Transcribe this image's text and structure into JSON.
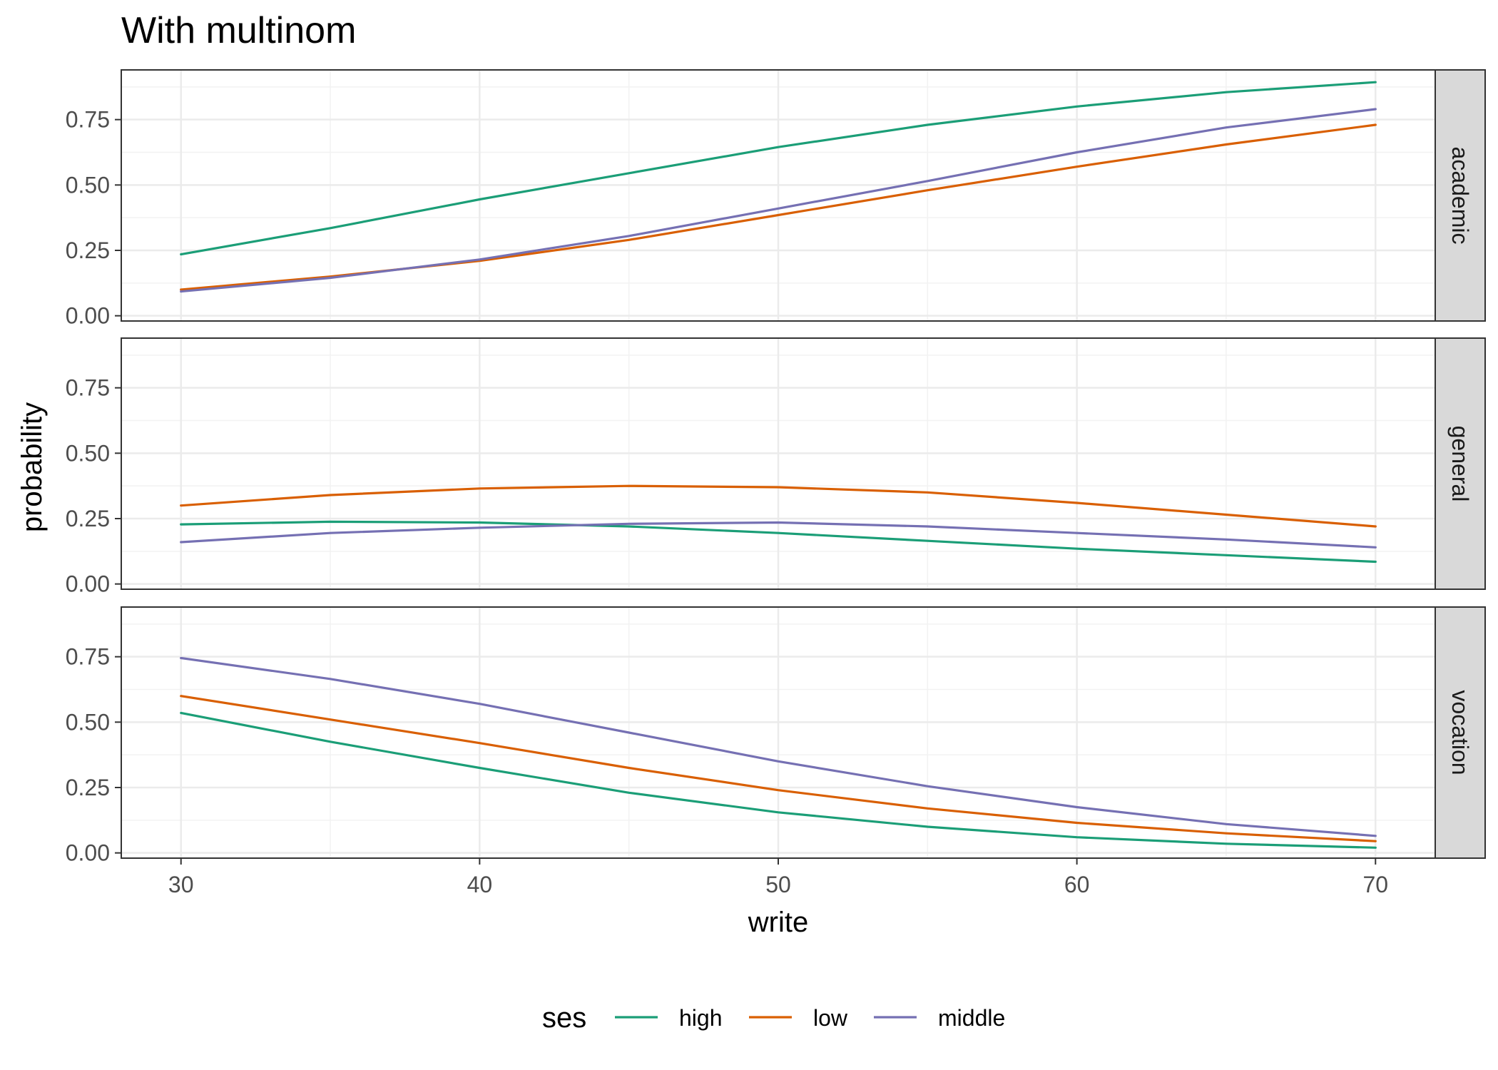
{
  "chart_data": {
    "type": "line",
    "title": "With multinom",
    "xlabel": "write",
    "ylabel": "probability",
    "xlim": [
      28,
      72
    ],
    "ylim": [
      -0.02,
      0.94
    ],
    "x_ticks": [
      30,
      40,
      50,
      60,
      70
    ],
    "x_tick_labels": [
      "30",
      "40",
      "50",
      "60",
      "70"
    ],
    "y_ticks": [
      0,
      0.25,
      0.5,
      0.75
    ],
    "y_tick_labels": [
      "0.00",
      "0.25",
      "0.50",
      "0.75"
    ],
    "legend": {
      "title": "ses",
      "position": "bottom",
      "entries": [
        {
          "name": "high",
          "color": "#1b9e77"
        },
        {
          "name": "low",
          "color": "#d95f02"
        },
        {
          "name": "middle",
          "color": "#7570b3"
        }
      ]
    },
    "x": [
      30,
      35,
      40,
      45,
      50,
      55,
      60,
      65,
      70
    ],
    "panels": [
      {
        "label": "academic",
        "series": [
          {
            "name": "high",
            "values": [
              0.235,
              0.335,
              0.445,
              0.545,
              0.645,
              0.73,
              0.8,
              0.855,
              0.893
            ]
          },
          {
            "name": "low",
            "values": [
              0.1,
              0.15,
              0.21,
              0.29,
              0.385,
              0.48,
              0.57,
              0.655,
              0.73
            ]
          },
          {
            "name": "middle",
            "values": [
              0.093,
              0.145,
              0.215,
              0.305,
              0.41,
              0.515,
              0.625,
              0.72,
              0.79
            ]
          }
        ]
      },
      {
        "label": "general",
        "series": [
          {
            "name": "high",
            "values": [
              0.228,
              0.238,
              0.235,
              0.22,
              0.195,
              0.165,
              0.135,
              0.11,
              0.085
            ]
          },
          {
            "name": "low",
            "values": [
              0.3,
              0.34,
              0.365,
              0.375,
              0.37,
              0.35,
              0.31,
              0.265,
              0.22
            ]
          },
          {
            "name": "middle",
            "values": [
              0.16,
              0.195,
              0.215,
              0.23,
              0.235,
              0.22,
              0.195,
              0.17,
              0.14
            ]
          }
        ]
      },
      {
        "label": "vocation",
        "series": [
          {
            "name": "high",
            "values": [
              0.535,
              0.425,
              0.325,
              0.23,
              0.155,
              0.1,
              0.06,
              0.035,
              0.02
            ]
          },
          {
            "name": "low",
            "values": [
              0.6,
              0.51,
              0.42,
              0.325,
              0.24,
              0.17,
              0.115,
              0.075,
              0.045
            ]
          },
          {
            "name": "middle",
            "values": [
              0.745,
              0.665,
              0.57,
              0.46,
              0.35,
              0.255,
              0.175,
              0.11,
              0.065
            ]
          }
        ]
      }
    ]
  }
}
